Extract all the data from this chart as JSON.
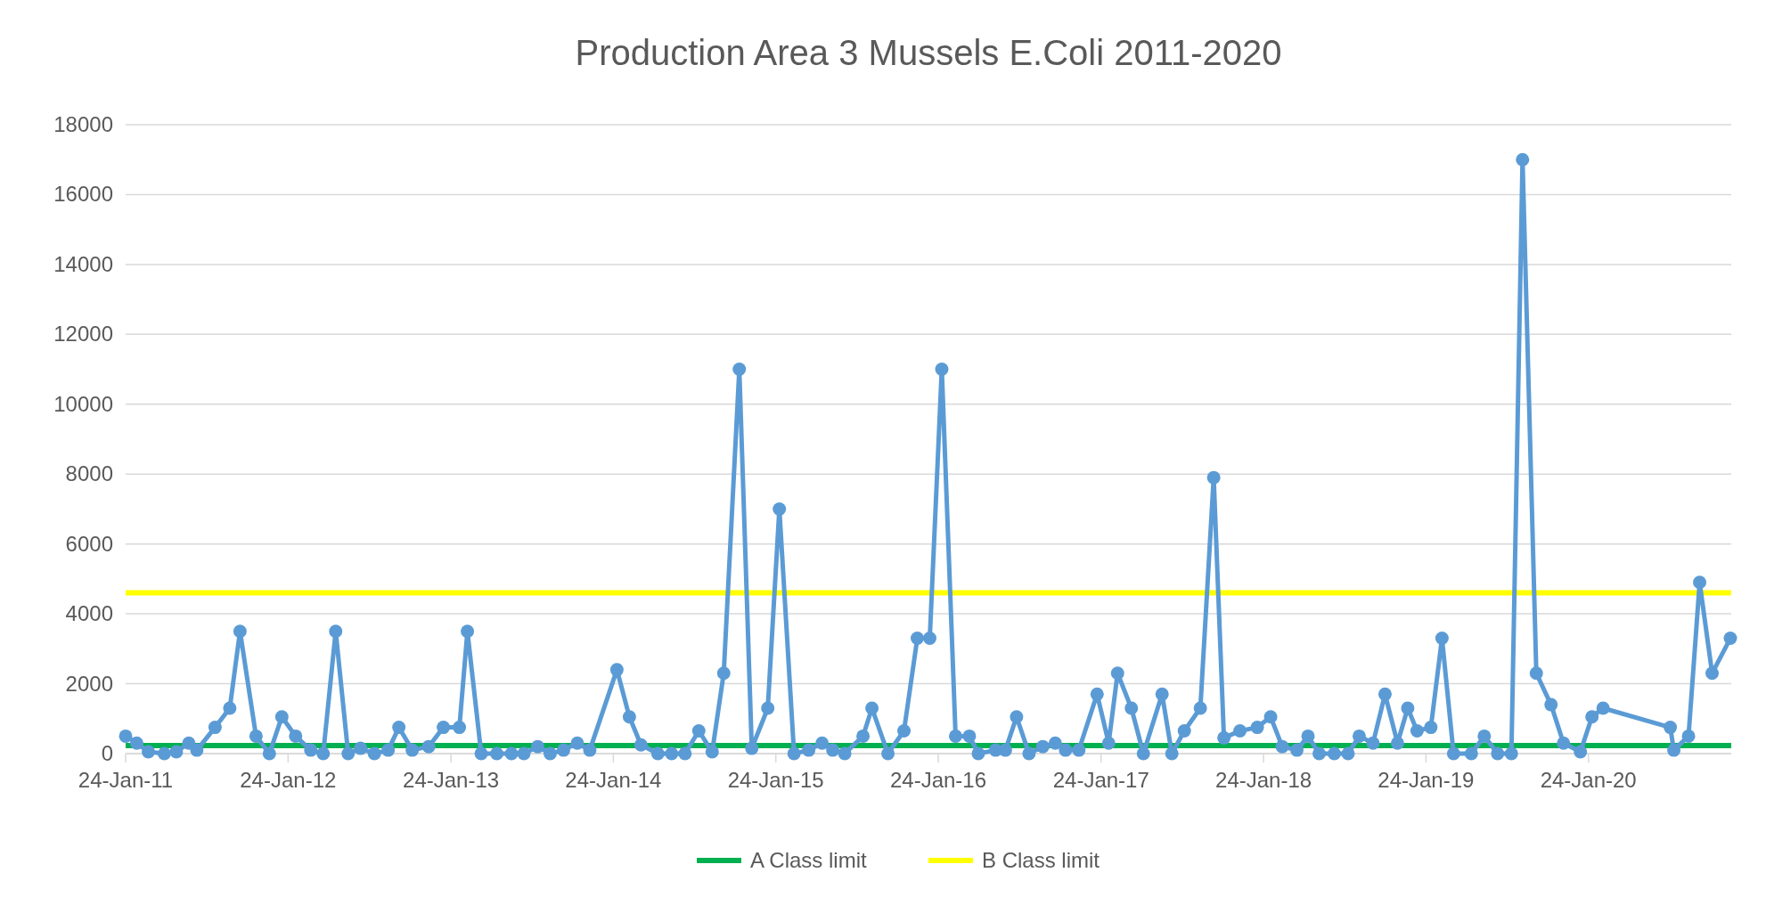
{
  "chart_data": {
    "type": "line",
    "title": "Production Area 3 Mussels E.Coli 2011-2020",
    "x": [
      "2011-01-24",
      "2011-02-18",
      "2011-03-16",
      "2011-04-21",
      "2011-05-18",
      "2011-06-15",
      "2011-07-03",
      "2011-08-13",
      "2011-09-15",
      "2011-10-08",
      "2011-11-13",
      "2011-12-13",
      "2012-01-10",
      "2012-02-10",
      "2012-03-15",
      "2012-04-12",
      "2012-05-10",
      "2012-06-07",
      "2012-07-05",
      "2012-08-05",
      "2012-09-05",
      "2012-09-29",
      "2012-10-29",
      "2012-12-05",
      "2013-01-07",
      "2013-02-12",
      "2013-03-02",
      "2013-04-02",
      "2013-05-07",
      "2013-06-09",
      "2013-07-07",
      "2013-08-07",
      "2013-09-04",
      "2013-10-04",
      "2013-11-04",
      "2013-12-02",
      "2014-02-01",
      "2014-03-01",
      "2014-03-27",
      "2014-05-04",
      "2014-06-04",
      "2014-07-04",
      "2014-08-04",
      "2014-09-03",
      "2014-09-29",
      "2014-11-03",
      "2014-12-01",
      "2015-01-06",
      "2015-02-01",
      "2015-03-06",
      "2015-04-08",
      "2015-05-08",
      "2015-06-01",
      "2015-06-28",
      "2015-08-08",
      "2015-08-28",
      "2015-10-03",
      "2015-11-08",
      "2015-12-08",
      "2016-01-05",
      "2016-02-01",
      "2016-03-03",
      "2016-04-03",
      "2016-04-23",
      "2016-06-01",
      "2016-06-23",
      "2016-07-18",
      "2016-08-15",
      "2016-09-15",
      "2016-10-13",
      "2016-11-05",
      "2016-12-05",
      "2017-01-15",
      "2017-02-10",
      "2017-03-02",
      "2017-04-02",
      "2017-04-29",
      "2017-06-10",
      "2017-07-02",
      "2017-07-30",
      "2017-09-04",
      "2017-10-04",
      "2017-10-27",
      "2017-12-02",
      "2018-01-10",
      "2018-02-09",
      "2018-03-07",
      "2018-04-09",
      "2018-05-04",
      "2018-05-29",
      "2018-07-02",
      "2018-08-02",
      "2018-08-27",
      "2018-09-27",
      "2018-10-24",
      "2018-11-21",
      "2018-12-14",
      "2019-01-04",
      "2019-02-04",
      "2019-03-01",
      "2019-03-27",
      "2019-05-06",
      "2019-06-04",
      "2019-07-04",
      "2019-08-04",
      "2019-08-29",
      "2019-09-29",
      "2019-11-01",
      "2019-11-29",
      "2020-01-06",
      "2020-02-01",
      "2020-02-26",
      "2020-07-26",
      "2020-08-03",
      "2020-09-05",
      "2020-09-30",
      "2020-10-28",
      "2020-12-08"
    ],
    "series": [
      {
        "color": "#5b9bd5",
        "values": [
          500,
          300,
          50,
          0,
          50,
          300,
          100,
          750,
          1300,
          3500,
          500,
          0,
          1050,
          500,
          100,
          0,
          3500,
          0,
          150,
          0,
          100,
          750,
          100,
          200,
          750,
          750,
          3500,
          0,
          0,
          0,
          0,
          200,
          0,
          100,
          300,
          100,
          2400,
          1050,
          250,
          0,
          0,
          0,
          650,
          50,
          2300,
          11000,
          150,
          1300,
          7000,
          0,
          100,
          300,
          100,
          0,
          500,
          1300,
          0,
          650,
          3300,
          3300,
          11000,
          500,
          500,
          0,
          100,
          100,
          1050,
          0,
          200,
          300,
          100,
          100,
          1700,
          300,
          2300,
          1300,
          0,
          1700,
          0,
          650,
          1300,
          7900,
          450,
          650,
          750,
          1050,
          200,
          100,
          500,
          0,
          0,
          0,
          500,
          300,
          1700,
          300,
          1300,
          650,
          750,
          3300,
          0,
          0,
          500,
          0,
          0,
          17000,
          2300,
          1400,
          300,
          50,
          1050,
          1300,
          750,
          100,
          500,
          4900,
          2300,
          3300
        ]
      }
    ],
    "xlim": [
      "2011-01-24",
      "2020-12-10"
    ],
    "xticks": [
      {
        "value": "2011-01-24",
        "label": "24-Jan-11"
      },
      {
        "value": "2012-01-24",
        "label": "24-Jan-12"
      },
      {
        "value": "2013-01-24",
        "label": "24-Jan-13"
      },
      {
        "value": "2014-01-24",
        "label": "24-Jan-14"
      },
      {
        "value": "2015-01-24",
        "label": "24-Jan-15"
      },
      {
        "value": "2016-01-24",
        "label": "24-Jan-16"
      },
      {
        "value": "2017-01-24",
        "label": "24-Jan-17"
      },
      {
        "value": "2018-01-24",
        "label": "24-Jan-18"
      },
      {
        "value": "2019-01-24",
        "label": "24-Jan-19"
      },
      {
        "value": "2020-01-24",
        "label": "24-Jan-20"
      }
    ],
    "ylim": [
      0,
      18000
    ],
    "yticks": [
      0,
      2000,
      4000,
      6000,
      8000,
      10000,
      12000,
      14000,
      16000,
      18000
    ],
    "grid": "y",
    "marker": "circle",
    "line_style": "solid",
    "legend": "bottom",
    "ref_lines": [
      {
        "axis": "y",
        "value": 230,
        "label": "A Class limit",
        "color": "#00b050"
      },
      {
        "axis": "y",
        "value": 4600,
        "label": "B Class limit",
        "color": "#ffff00"
      }
    ]
  }
}
